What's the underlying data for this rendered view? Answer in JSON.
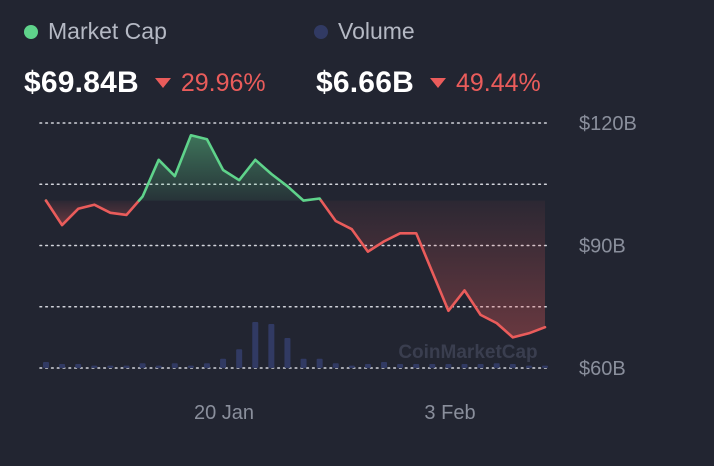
{
  "header": {
    "legend": [
      {
        "label": "Market Cap",
        "color": "#5fd38b"
      },
      {
        "label": "Volume",
        "color": "#313a63"
      }
    ],
    "stats": [
      {
        "value": "$69.84B",
        "change": "29.96%",
        "direction": "down"
      },
      {
        "value": "$6.66B",
        "change": "49.44%",
        "direction": "down"
      }
    ]
  },
  "chart_data": {
    "type": "line",
    "title": "",
    "xlabel": "",
    "ylabel": "",
    "x_tick_labels": [
      "20 Jan",
      "3 Feb"
    ],
    "y_tick_labels": [
      "$120B",
      "$90B",
      "$60B"
    ],
    "y_ticks": [
      120,
      90,
      60
    ],
    "ylim": [
      60,
      120
    ],
    "baseline_value": 101,
    "grid": true,
    "legend_position": "top-left",
    "watermark": "CoinMarketCap",
    "colors": {
      "up": "#5fd38b",
      "down": "#ea5c5b",
      "volume": "#313a63"
    },
    "series": [
      {
        "name": "Market Cap",
        "unit": "B USD",
        "values": [
          101,
          95,
          99,
          100,
          98,
          97.5,
          102,
          111,
          107,
          117,
          116,
          108.5,
          106,
          111,
          107.5,
          104.5,
          101,
          101.5,
          96,
          94,
          88.5,
          91,
          93,
          93,
          83.5,
          74,
          79,
          73,
          71,
          67.5,
          68.5,
          70
        ]
      },
      {
        "name": "Volume",
        "unit": "relative",
        "values": [
          1.5,
          1,
          1,
          0.6,
          0.6,
          0.6,
          1.2,
          0.6,
          1.2,
          0.6,
          1.2,
          2.3,
          4.7,
          11.5,
          11,
          7.5,
          2.3,
          2.3,
          1.2,
          0.6,
          1,
          1.5,
          1,
          1,
          1,
          1,
          1,
          1,
          1.2,
          1,
          0.6,
          0.6
        ]
      }
    ]
  }
}
